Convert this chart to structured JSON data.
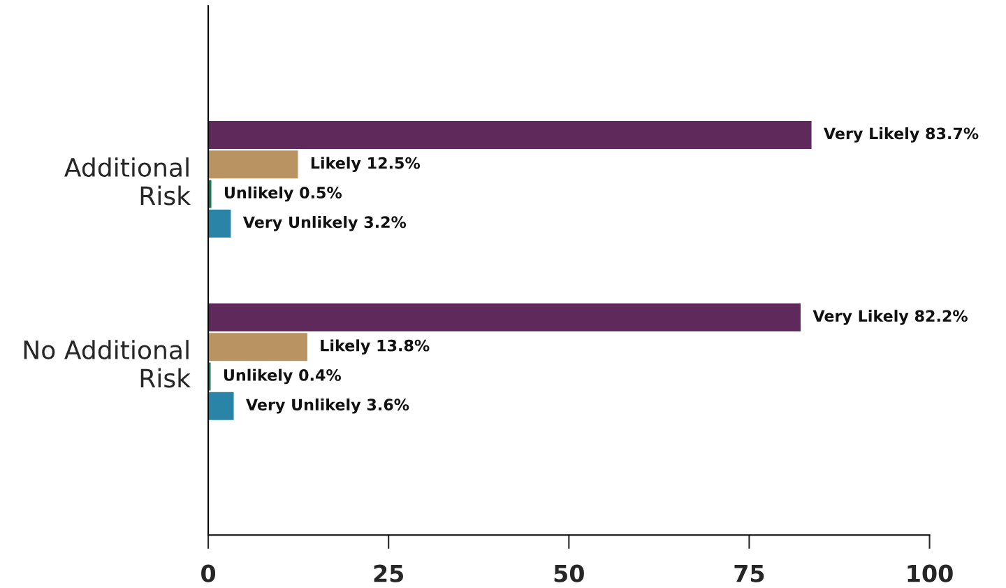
{
  "chart_data": {
    "type": "bar",
    "orientation": "horizontal",
    "categories": [
      "Additional\nRisk",
      "No Additional\nRisk"
    ],
    "series": [
      {
        "name": "Very Likely",
        "color": "#5f2a5b",
        "values": [
          83.7,
          82.2
        ],
        "value_labels": [
          "83.7%",
          "82.2%"
        ]
      },
      {
        "name": "Likely",
        "color": "#b99462",
        "values": [
          12.5,
          13.8
        ],
        "value_labels": [
          "12.5%",
          "13.8%"
        ]
      },
      {
        "name": "Unlikely",
        "color": "#1f7a5c",
        "values": [
          0.5,
          0.4
        ],
        "value_labels": [
          "0.5%",
          "0.4%"
        ]
      },
      {
        "name": "Very Unlikely",
        "color": "#2a84a8",
        "values": [
          3.2,
          3.6
        ],
        "value_labels": [
          "3.2%",
          "3.6%"
        ]
      }
    ],
    "xlim": [
      0,
      100
    ],
    "xticks": [
      0,
      25,
      50,
      75,
      100
    ],
    "grid": false,
    "legend": false
  }
}
